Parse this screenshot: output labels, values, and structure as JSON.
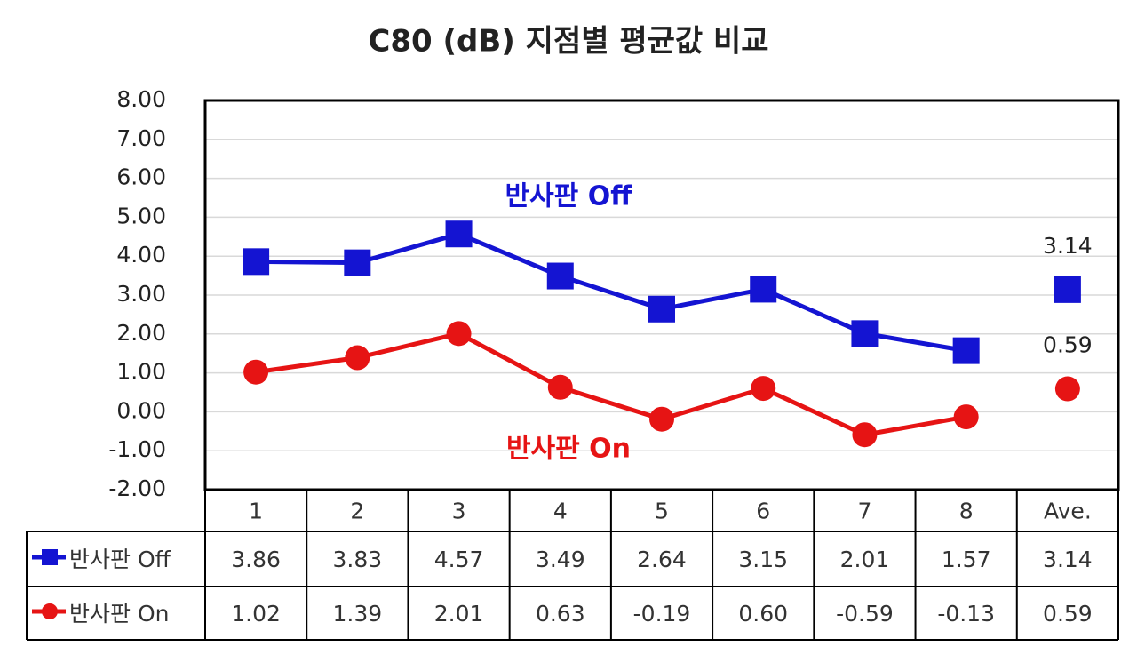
{
  "chart_data": {
    "type": "line",
    "title": "C80 (dB) 지점별 평균값 비교",
    "categories": [
      "1",
      "2",
      "3",
      "4",
      "5",
      "6",
      "7",
      "8",
      "Ave."
    ],
    "joined_points": 8,
    "series": [
      {
        "name": "반사판 Off",
        "color": "#1414d2",
        "marker": "square",
        "values": [
          3.86,
          3.83,
          4.57,
          3.49,
          2.64,
          3.15,
          2.01,
          1.57,
          3.14
        ],
        "value_labels": [
          "3.86",
          "3.83",
          "4.57",
          "3.49",
          "2.64",
          "3.15",
          "2.01",
          "1.57",
          "3.14"
        ]
      },
      {
        "name": "반사판 On",
        "color": "#e61414",
        "marker": "circle",
        "values": [
          1.02,
          1.39,
          2.01,
          0.63,
          -0.19,
          0.6,
          -0.59,
          -0.13,
          0.59
        ],
        "value_labels": [
          "1.02",
          "1.39",
          "2.01",
          "0.63",
          "-0.19",
          "0.60",
          "-0.59",
          "-0.13",
          "0.59"
        ]
      }
    ],
    "ylim": [
      -2,
      8
    ],
    "yticks": [
      {
        "value": -2,
        "label": "-2.00"
      },
      {
        "value": -1,
        "label": "-1.00"
      },
      {
        "value": 0,
        "label": "0.00"
      },
      {
        "value": 1,
        "label": "1.00"
      },
      {
        "value": 2,
        "label": "2.00"
      },
      {
        "value": 3,
        "label": "3.00"
      },
      {
        "value": 4,
        "label": "4.00"
      },
      {
        "value": 5,
        "label": "5.00"
      },
      {
        "value": 6,
        "label": "6.00"
      },
      {
        "value": 7,
        "label": "7.00"
      },
      {
        "value": 8,
        "label": "8.00"
      }
    ],
    "grid": true
  }
}
